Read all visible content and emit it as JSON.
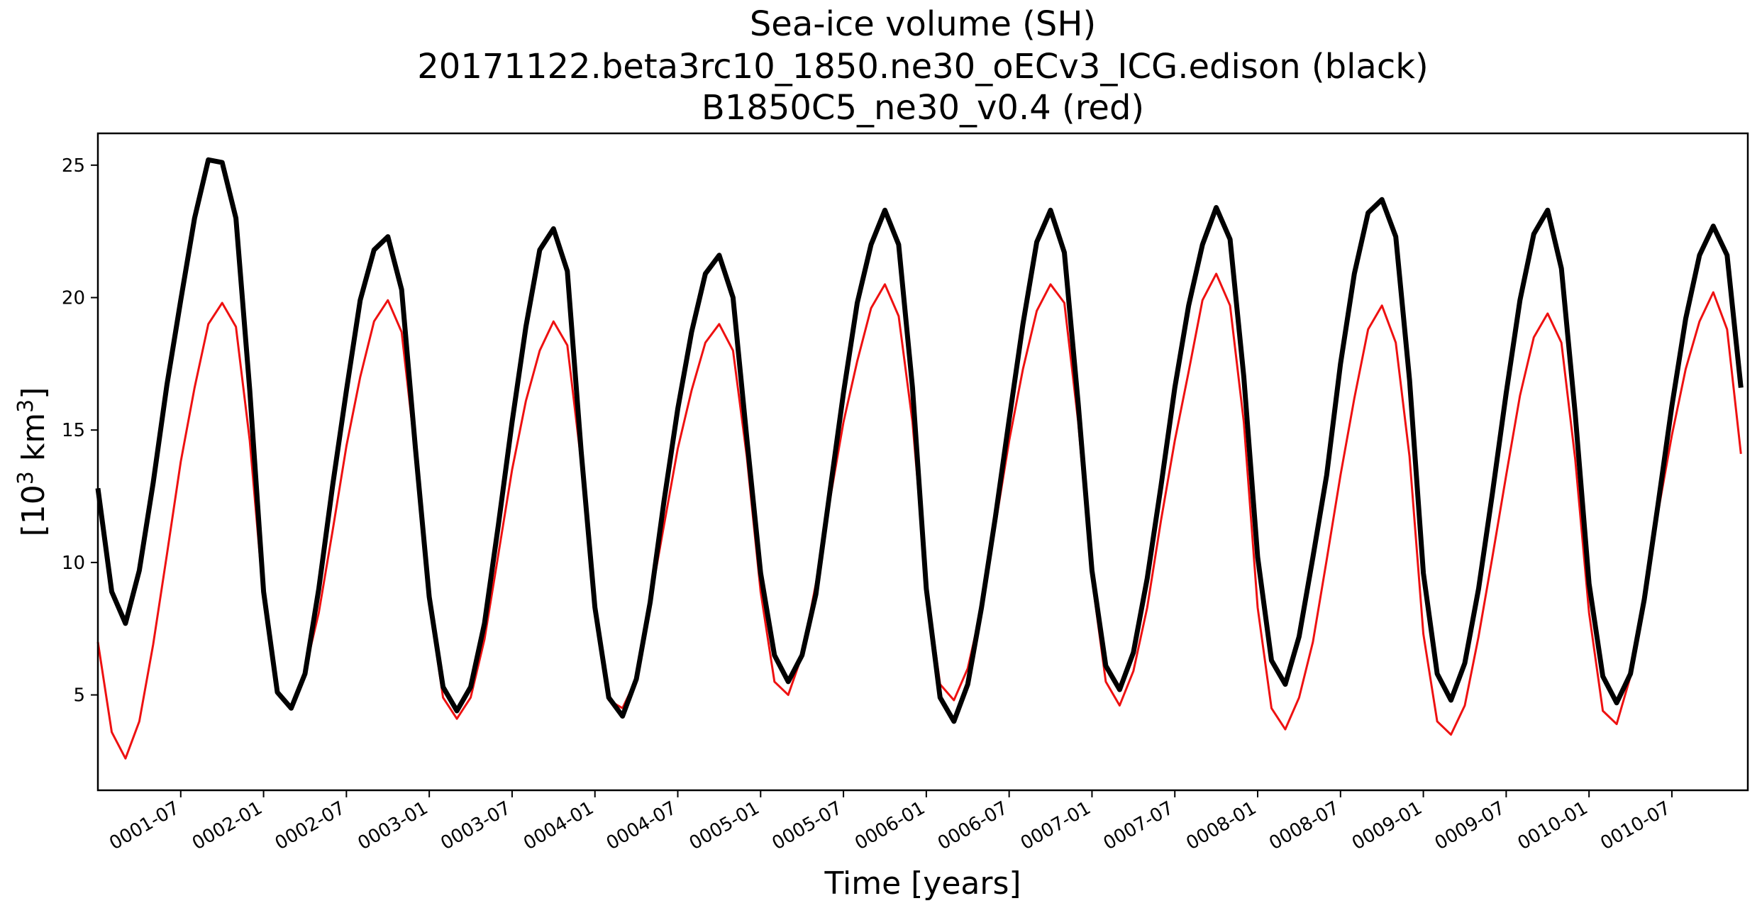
{
  "chart_data": {
    "type": "line",
    "title_lines": [
      "Sea-ice volume (SH)",
      "20171122.beta3rc10_1850.ne30_oECv3_ICG.edison (black)",
      "B1850C5_ne30_v0.4 (red)"
    ],
    "xlabel": "Time [years]",
    "ylabel_main": "[10",
    "ylabel_sup1": "3",
    "ylabel_mid": " km",
    "ylabel_sup2": "3",
    "ylabel_end": "]",
    "x_start_month": 0,
    "x_end_month": 119.5,
    "ylim": [
      1.4,
      26.2
    ],
    "yticks": [
      5,
      10,
      15,
      20,
      25
    ],
    "xticks": [
      {
        "label": "0001-07",
        "month": 6
      },
      {
        "label": "0002-01",
        "month": 12
      },
      {
        "label": "0002-07",
        "month": 18
      },
      {
        "label": "0003-01",
        "month": 24
      },
      {
        "label": "0003-07",
        "month": 30
      },
      {
        "label": "0004-01",
        "month": 36
      },
      {
        "label": "0004-07",
        "month": 42
      },
      {
        "label": "0005-01",
        "month": 48
      },
      {
        "label": "0005-07",
        "month": 54
      },
      {
        "label": "0006-01",
        "month": 60
      },
      {
        "label": "0006-07",
        "month": 66
      },
      {
        "label": "0007-01",
        "month": 72
      },
      {
        "label": "0007-07",
        "month": 78
      },
      {
        "label": "0008-01",
        "month": 84
      },
      {
        "label": "0008-07",
        "month": 90
      },
      {
        "label": "0009-01",
        "month": 96
      },
      {
        "label": "0009-07",
        "month": 102
      },
      {
        "label": "0010-01",
        "month": 108
      },
      {
        "label": "0010-07",
        "month": 114
      }
    ],
    "series": [
      {
        "name": "20171122.beta3rc10_1850.ne30_oECv3_ICG.edison",
        "color": "#000000",
        "values": [
          12.8,
          8.9,
          7.7,
          9.7,
          13.0,
          16.7,
          19.9,
          23.0,
          25.2,
          25.1,
          23.0,
          16.5,
          8.9,
          5.1,
          4.5,
          5.8,
          9.0,
          12.9,
          16.5,
          19.9,
          21.8,
          22.3,
          20.3,
          14.3,
          8.7,
          5.3,
          4.4,
          5.3,
          7.7,
          11.4,
          15.3,
          18.9,
          21.8,
          22.6,
          21.0,
          14.2,
          8.3,
          4.9,
          4.2,
          5.6,
          8.5,
          12.3,
          15.8,
          18.7,
          20.9,
          21.6,
          20.0,
          14.7,
          9.6,
          6.5,
          5.5,
          6.5,
          8.8,
          12.6,
          16.4,
          19.8,
          22.0,
          23.3,
          22.0,
          16.6,
          9.0,
          4.9,
          4.0,
          5.4,
          8.3,
          11.7,
          15.4,
          19.0,
          22.1,
          23.3,
          21.7,
          16.0,
          9.7,
          6.1,
          5.2,
          6.6,
          9.4,
          12.9,
          16.6,
          19.7,
          22.0,
          23.4,
          22.2,
          17.0,
          10.2,
          6.3,
          5.4,
          7.2,
          10.2,
          13.3,
          17.5,
          20.9,
          23.2,
          23.7,
          22.3,
          16.9,
          9.6,
          5.8,
          4.8,
          6.2,
          9.0,
          12.6,
          16.4,
          19.9,
          22.4,
          23.3,
          21.1,
          15.6,
          9.2,
          5.7,
          4.7,
          5.8,
          8.6,
          12.2,
          15.9,
          19.2,
          21.6,
          22.7,
          21.6,
          16.6
        ]
      },
      {
        "name": "B1850C5_ne30_v0.4",
        "color": "#ee1111",
        "values": [
          7.0,
          3.6,
          2.6,
          4.0,
          6.9,
          10.3,
          13.8,
          16.6,
          19.0,
          19.8,
          18.9,
          14.6,
          8.6,
          5.1,
          4.5,
          5.9,
          8.1,
          11.2,
          14.4,
          17.0,
          19.1,
          19.9,
          18.7,
          14.1,
          8.5,
          4.9,
          4.1,
          4.9,
          7.1,
          10.3,
          13.5,
          16.1,
          18.0,
          19.1,
          18.2,
          13.8,
          8.2,
          4.8,
          4.5,
          5.6,
          8.5,
          11.4,
          14.3,
          16.5,
          18.3,
          19.0,
          18.0,
          14.0,
          8.9,
          5.5,
          5.0,
          6.5,
          9.2,
          12.3,
          15.3,
          17.6,
          19.6,
          20.5,
          19.3,
          15.3,
          9.2,
          5.4,
          4.8,
          6.0,
          8.3,
          11.4,
          14.6,
          17.3,
          19.5,
          20.5,
          19.8,
          15.3,
          9.4,
          5.5,
          4.6,
          5.9,
          8.3,
          11.6,
          14.6,
          17.2,
          19.9,
          20.9,
          19.7,
          15.3,
          8.3,
          4.5,
          3.7,
          4.9,
          7.0,
          10.1,
          13.3,
          16.2,
          18.8,
          19.7,
          18.3,
          14.0,
          7.3,
          4.0,
          3.5,
          4.6,
          7.2,
          10.2,
          13.3,
          16.3,
          18.5,
          19.4,
          18.3,
          13.9,
          8.1,
          4.4,
          3.9,
          5.7,
          8.7,
          11.9,
          14.8,
          17.3,
          19.1,
          20.2,
          18.8,
          14.1
        ]
      }
    ]
  }
}
